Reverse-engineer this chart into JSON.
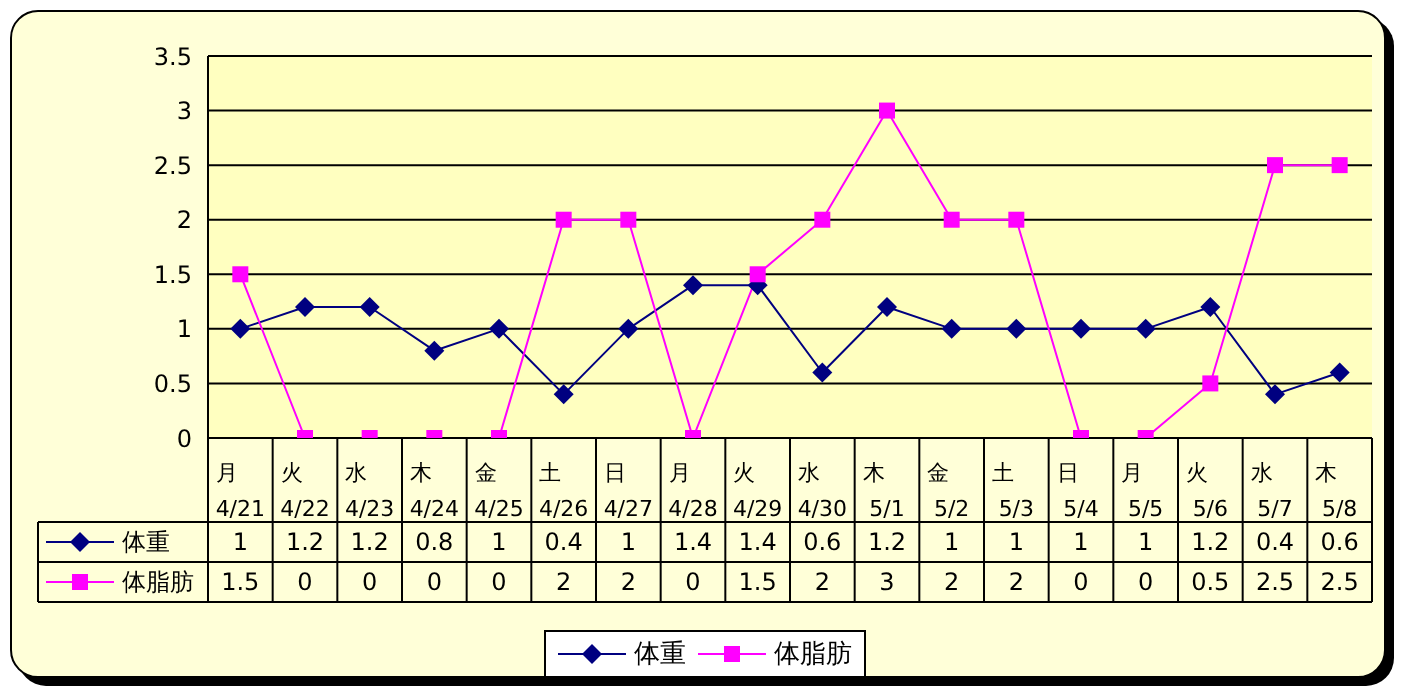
{
  "chart_data": {
    "type": "line",
    "categories": [
      "月\n4/21",
      "火\n4/22",
      "水\n4/23",
      "木\n4/24",
      "金\n4/25",
      "土\n4/26",
      "日\n4/27",
      "月\n4/28",
      "火\n4/29",
      "水\n4/30",
      "木\n5/1",
      "金\n5/2",
      "土\n5/3",
      "日\n5/4",
      "月\n5/5",
      "火\n5/6",
      "水\n5/7",
      "木\n5/8"
    ],
    "series": [
      {
        "name": "体重",
        "color": "#000080",
        "marker": "diamond",
        "values": [
          1,
          1.2,
          1.2,
          0.8,
          1,
          0.4,
          1,
          1.4,
          1.4,
          0.6,
          1.2,
          1,
          1,
          1,
          1,
          1.2,
          0.4,
          0.6
        ]
      },
      {
        "name": "体脂肪",
        "color": "#ff00ff",
        "marker": "square",
        "values": [
          1.5,
          0,
          0,
          0,
          0,
          2,
          2,
          0,
          1.5,
          2,
          3,
          2,
          2,
          0,
          0,
          0.5,
          2.5,
          2.5
        ]
      }
    ],
    "ylim": [
      0,
      3.5
    ],
    "yticks": [
      0,
      0.5,
      1,
      1.5,
      2,
      2.5,
      3,
      3.5
    ],
    "grid": "y",
    "legend": "bottom",
    "data_labels": true
  }
}
